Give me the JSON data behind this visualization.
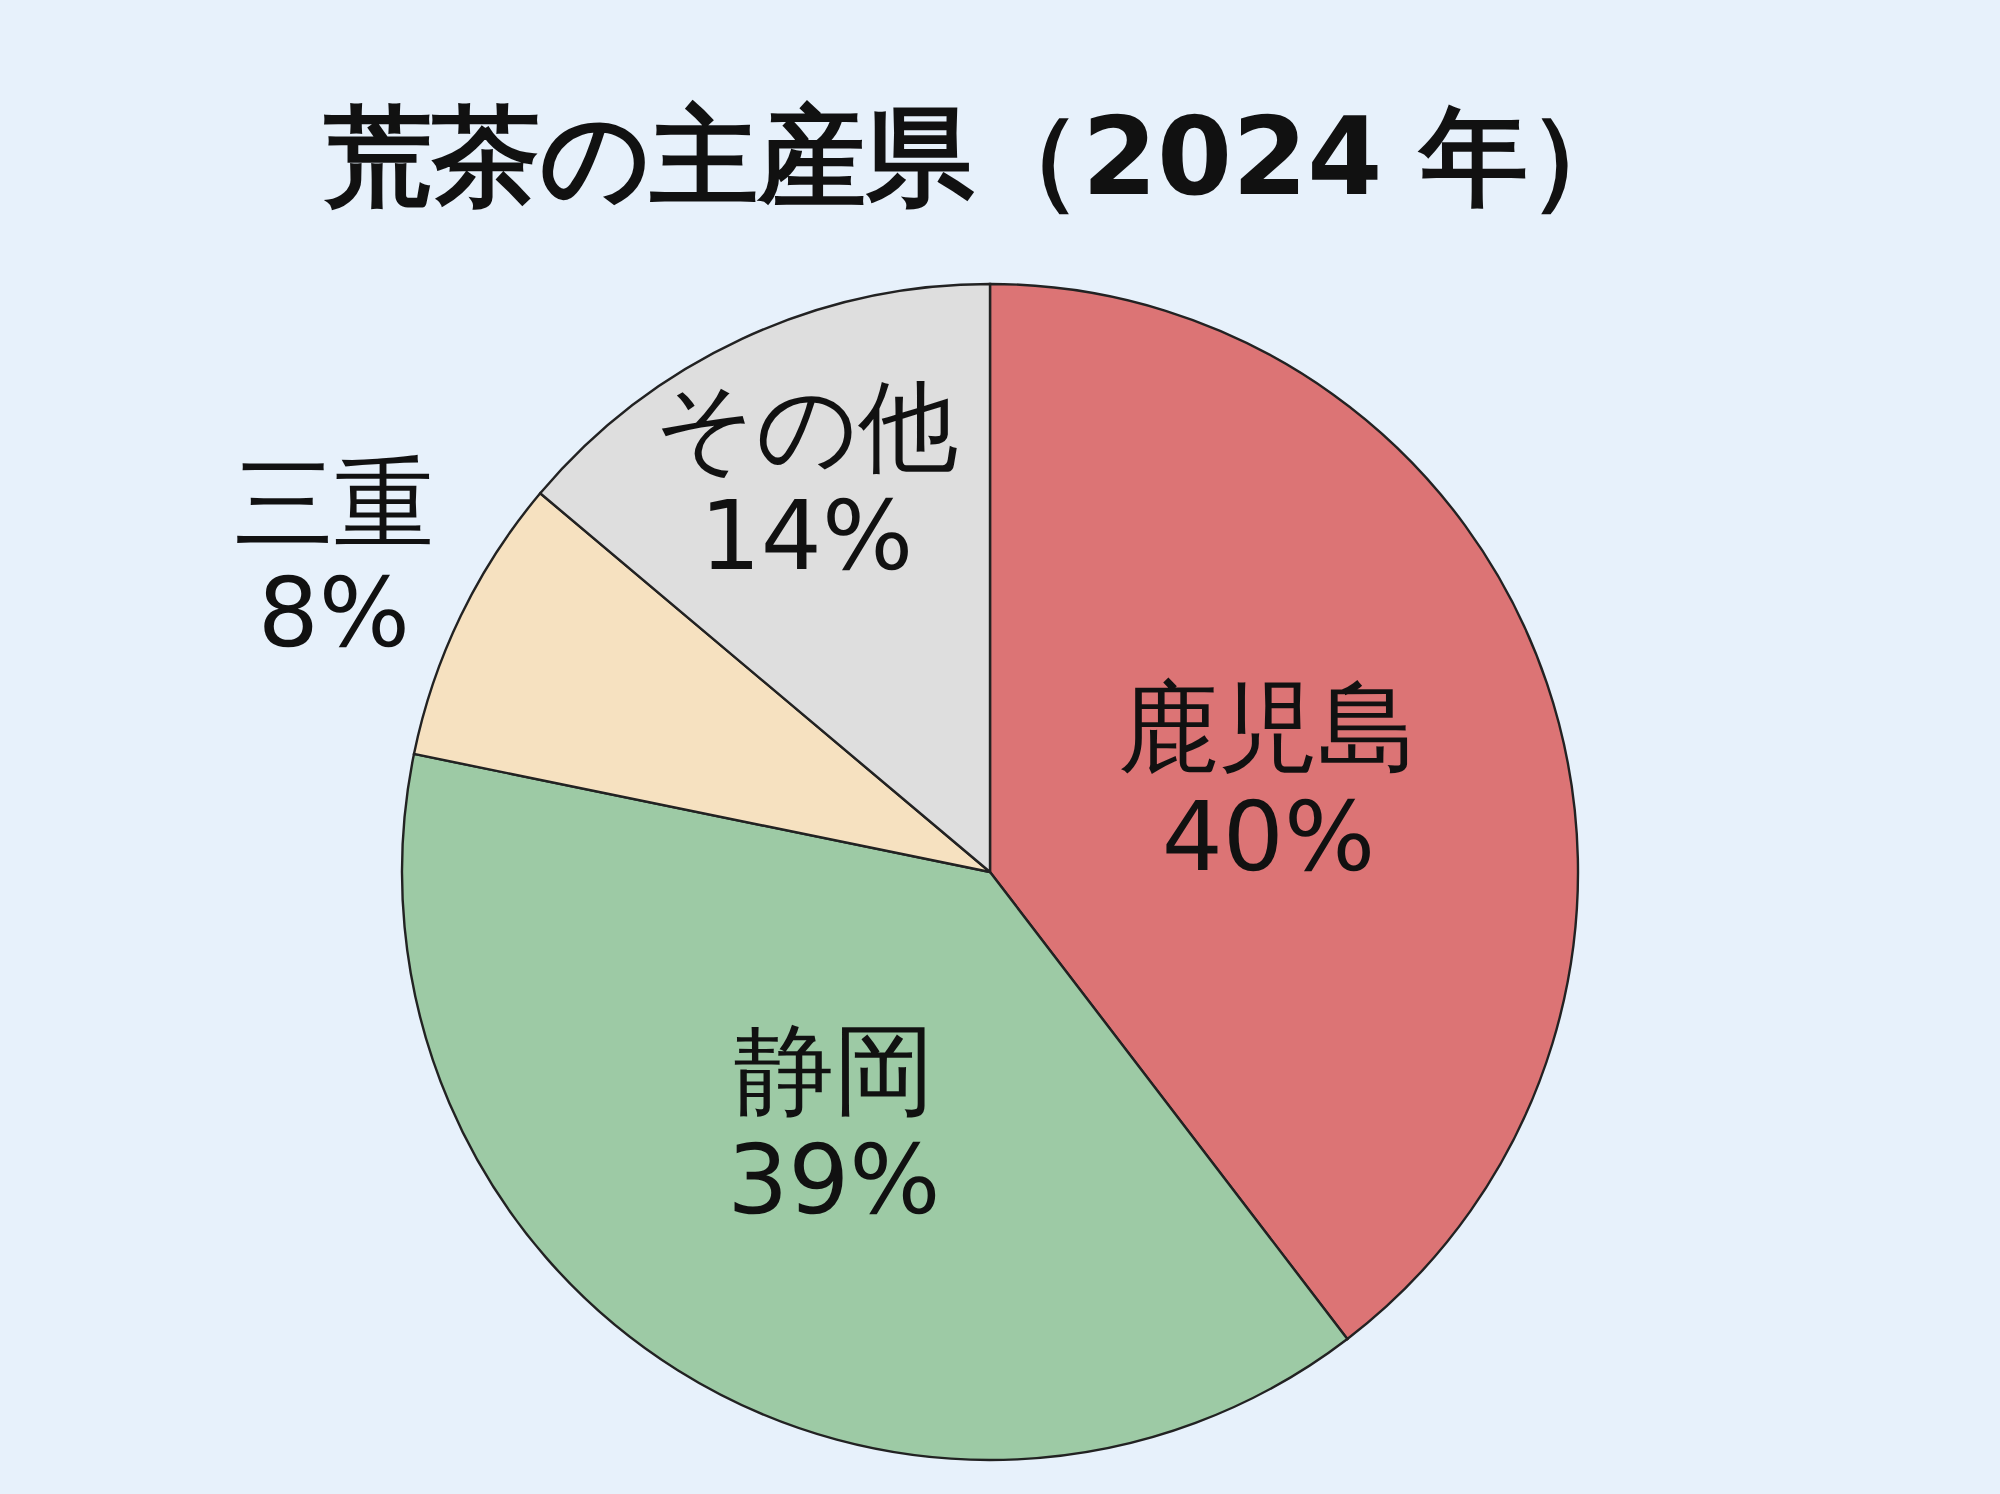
{
  "chart_data": {
    "type": "pie",
    "title": "荒茶の主産県（2024 年）",
    "categories": [
      "鹿児島",
      "静岡",
      "三重",
      "その他"
    ],
    "values": [
      40,
      39,
      8,
      14
    ],
    "value_labels": [
      "40%",
      "39%",
      "8%",
      "14%"
    ],
    "colors": [
      "#dc7475",
      "#9dcaa5",
      "#f6e1c0",
      "#dedede"
    ]
  }
}
